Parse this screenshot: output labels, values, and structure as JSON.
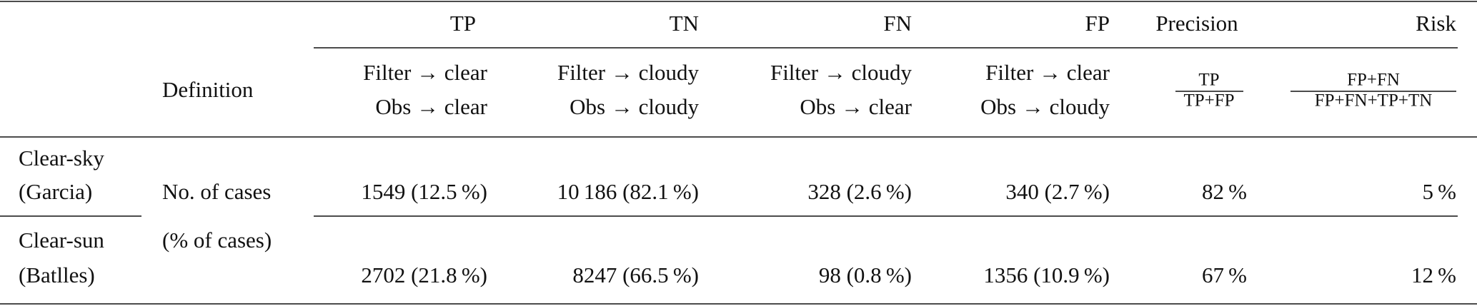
{
  "table": {
    "header": [
      "TP",
      "TN",
      "FN",
      "FP",
      "Precision",
      "Risk"
    ],
    "definition_label": "Definition",
    "definitions": [
      [
        "Filter → clear",
        "Obs → clear"
      ],
      [
        "Filter → cloudy",
        "Obs → cloudy"
      ],
      [
        "Filter → cloudy",
        "Obs → clear"
      ],
      [
        "Filter → clear",
        "Obs → cloudy"
      ]
    ],
    "precision_formula": {
      "numerator": "TP",
      "denominator": "TP+FP"
    },
    "risk_formula": {
      "numerator": "FP+FN",
      "denominator": "FP+FN+TP+TN"
    },
    "row_label": [
      "No. of cases",
      "(% of cases)"
    ],
    "rows": [
      {
        "method": [
          "Clear-sky",
          "(Garcia)"
        ],
        "values": [
          "1549 (12.5 %)",
          "10 186 (82.1 %)",
          "328 (2.6 %)",
          "340 (2.7 %)",
          "82 %",
          "5 %"
        ]
      },
      {
        "method": [
          "Clear-sun",
          "(Batlles)"
        ],
        "values": [
          "2702 (21.8 %)",
          "8247 (66.5 %)",
          "98 (0.8 %)",
          "1356 (10.9 %)",
          "67 %",
          "12 %"
        ]
      }
    ]
  }
}
